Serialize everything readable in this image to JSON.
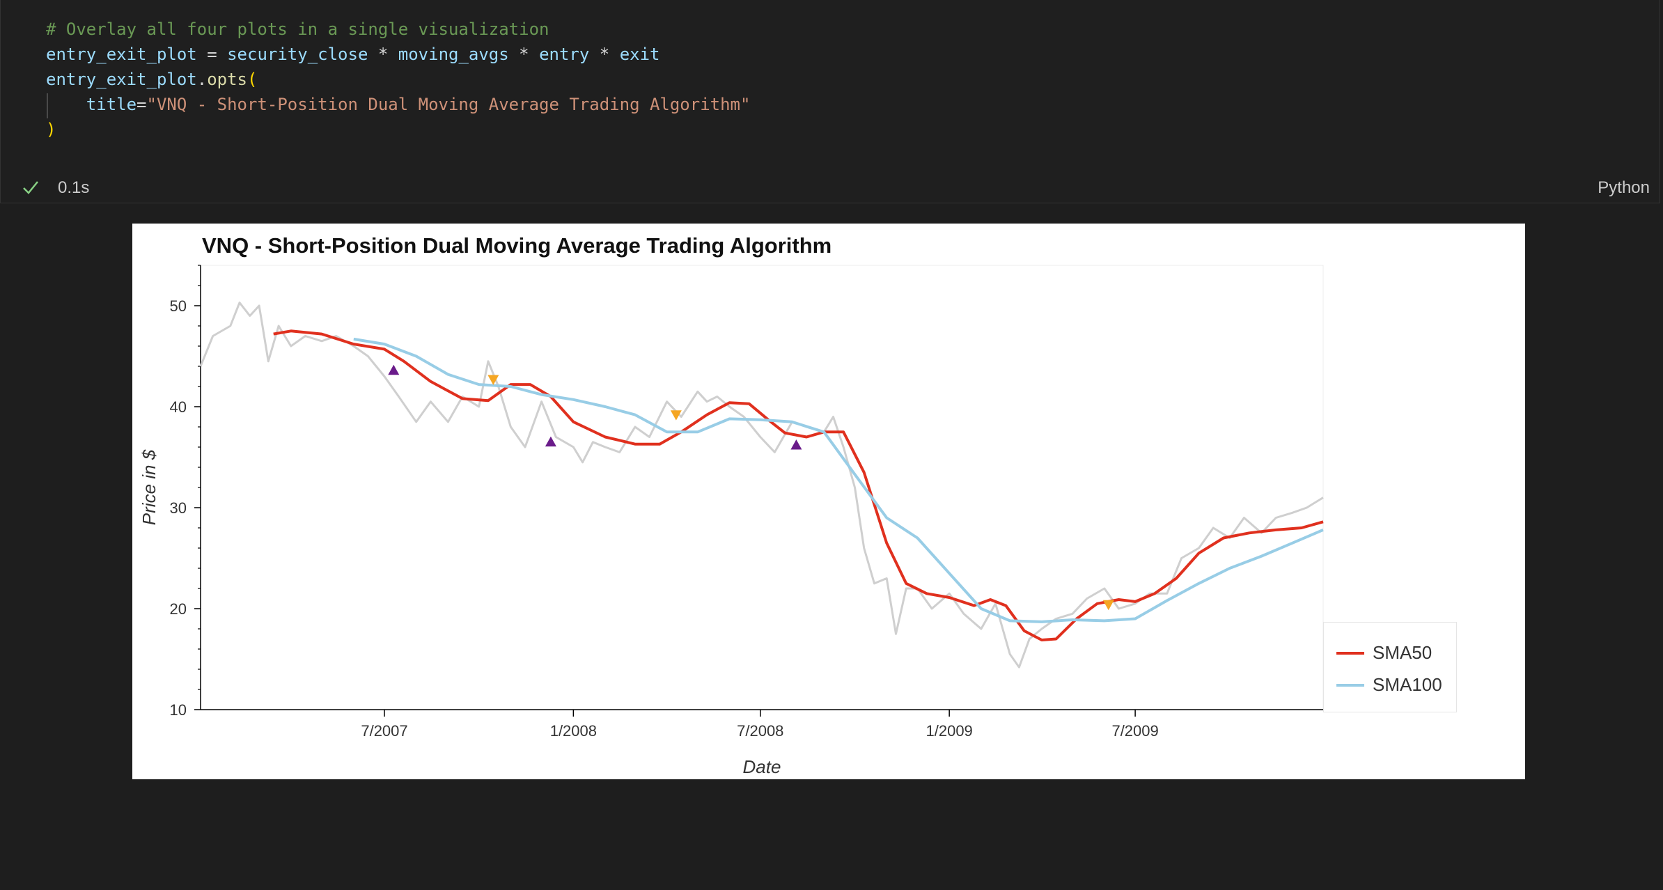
{
  "cell": {
    "code_lines": [
      {
        "tokens": [
          {
            "t": "# Overlay all four plots in a single visualization",
            "c": "c-comment"
          }
        ]
      },
      {
        "tokens": [
          {
            "t": "entry_exit_plot",
            "c": "c-var"
          },
          {
            "t": " = ",
            "c": "c-op"
          },
          {
            "t": "security_close",
            "c": "c-var"
          },
          {
            "t": " * ",
            "c": "c-op"
          },
          {
            "t": "moving_avgs",
            "c": "c-var"
          },
          {
            "t": " * ",
            "c": "c-op"
          },
          {
            "t": "entry",
            "c": "c-var"
          },
          {
            "t": " * ",
            "c": "c-op"
          },
          {
            "t": "exit",
            "c": "c-var"
          }
        ]
      },
      {
        "tokens": [
          {
            "t": "entry_exit_plot",
            "c": "c-var"
          },
          {
            "t": ".",
            "c": "c-op"
          },
          {
            "t": "opts",
            "c": "c-fn"
          },
          {
            "t": "(",
            "c": "c-paren"
          }
        ]
      },
      {
        "tokens": [
          {
            "t": "    title",
            "c": "c-var"
          },
          {
            "t": "=",
            "c": "c-op"
          },
          {
            "t": "\"VNQ - Short-Position Dual Moving Average Trading Algorithm\"",
            "c": "c-str"
          }
        ]
      },
      {
        "tokens": [
          {
            "t": ")",
            "c": "c-paren"
          }
        ]
      }
    ],
    "exec_time": "0.1s",
    "language": "Python",
    "status_icon": "check-icon"
  },
  "toolbar": {
    "icons": [
      "bokeh-logo-icon",
      "pan-icon",
      "box-zoom-icon",
      "wheel-zoom-icon",
      "save-icon",
      "reset-icon",
      "hover-icon",
      "hover-icon-2"
    ]
  },
  "chart_data": {
    "type": "line",
    "title": "VNQ - Short-Position Dual Moving Average Trading Algorithm",
    "xlabel": "Date",
    "ylabel": "Price in $",
    "x_ticks": [
      "7/2007",
      "1/2008",
      "7/2008",
      "1/2009",
      "7/2009"
    ],
    "y_ticks": [
      10,
      20,
      30,
      40,
      50
    ],
    "xlim": [
      "2007-01-03",
      "2009-12-31"
    ],
    "ylim": [
      10,
      54
    ],
    "grid": false,
    "legend_position": "right",
    "series": [
      {
        "name": "SMA50",
        "color": "#e0301e",
        "x": [
          "2007-03-15",
          "2007-04-01",
          "2007-05-01",
          "2007-06-01",
          "2007-07-01",
          "2007-07-20",
          "2007-08-15",
          "2007-09-15",
          "2007-10-10",
          "2007-11-01",
          "2007-11-20",
          "2007-12-10",
          "2008-01-01",
          "2008-02-01",
          "2008-03-01",
          "2008-03-25",
          "2008-04-15",
          "2008-05-10",
          "2008-06-01",
          "2008-06-20",
          "2008-07-10",
          "2008-07-25",
          "2008-08-15",
          "2008-09-01",
          "2008-09-20",
          "2008-10-10",
          "2008-11-01",
          "2008-11-20",
          "2008-12-10",
          "2009-01-01",
          "2009-01-25",
          "2009-02-10",
          "2009-02-25",
          "2009-03-15",
          "2009-04-01",
          "2009-04-15",
          "2009-05-05",
          "2009-05-25",
          "2009-06-15",
          "2009-07-01",
          "2009-07-20",
          "2009-08-10",
          "2009-09-01",
          "2009-09-25",
          "2009-10-20",
          "2009-11-15",
          "2009-12-10",
          "2009-12-31"
        ],
        "y": [
          47.2,
          47.5,
          47.2,
          46.2,
          45.7,
          44.5,
          42.5,
          40.8,
          40.6,
          42.2,
          42.2,
          41.0,
          38.5,
          37.0,
          36.3,
          36.3,
          37.5,
          39.2,
          40.4,
          40.3,
          38.6,
          37.4,
          37.0,
          37.5,
          37.5,
          33.5,
          26.5,
          22.5,
          21.5,
          21.1,
          20.3,
          20.9,
          20.3,
          17.8,
          16.9,
          17.0,
          19.0,
          20.5,
          20.9,
          20.7,
          21.5,
          23.0,
          25.5,
          27.0,
          27.5,
          27.8,
          28.0,
          28.6
        ]
      },
      {
        "name": "SMA100",
        "color": "#98cde6",
        "x": [
          "2007-06-01",
          "2007-07-01",
          "2007-08-01",
          "2007-09-01",
          "2007-10-01",
          "2007-11-01",
          "2007-12-01",
          "2008-01-01",
          "2008-02-01",
          "2008-03-01",
          "2008-04-01",
          "2008-05-01",
          "2008-06-01",
          "2008-07-01",
          "2008-08-01",
          "2008-09-01",
          "2008-10-01",
          "2008-11-01",
          "2008-12-01",
          "2009-01-01",
          "2009-02-01",
          "2009-03-01",
          "2009-04-01",
          "2009-05-01",
          "2009-06-01",
          "2009-07-01",
          "2009-08-01",
          "2009-09-01",
          "2009-10-01",
          "2009-11-01",
          "2009-12-01",
          "2009-12-31"
        ],
        "y": [
          46.7,
          46.2,
          45.0,
          43.2,
          42.2,
          42.0,
          41.2,
          40.7,
          40.0,
          39.2,
          37.5,
          37.5,
          38.8,
          38.7,
          38.5,
          37.5,
          33.3,
          29.0,
          27.0,
          23.5,
          20.0,
          18.8,
          18.7,
          18.9,
          18.8,
          19.0,
          20.8,
          22.5,
          24.0,
          25.2,
          26.5,
          27.8
        ]
      }
    ],
    "unlabeled_series": [
      {
        "color": "#cfcfcf",
        "x": [
          "2007-01-03",
          "2007-01-15",
          "2007-02-01",
          "2007-02-10",
          "2007-02-20",
          "2007-03-01",
          "2007-03-10",
          "2007-03-20",
          "2007-04-01",
          "2007-04-15",
          "2007-05-01",
          "2007-05-15",
          "2007-06-01",
          "2007-06-15",
          "2007-07-01",
          "2007-07-15",
          "2007-08-01",
          "2007-08-15",
          "2007-09-01",
          "2007-09-15",
          "2007-10-01",
          "2007-10-10",
          "2007-10-20",
          "2007-11-01",
          "2007-11-15",
          "2007-12-01",
          "2007-12-15",
          "2008-01-01",
          "2008-01-10",
          "2008-01-20",
          "2008-02-01",
          "2008-02-15",
          "2008-03-01",
          "2008-03-15",
          "2008-04-01",
          "2008-04-15",
          "2008-05-01",
          "2008-05-10",
          "2008-05-20",
          "2008-06-01",
          "2008-06-15",
          "2008-07-01",
          "2008-07-15",
          "2008-08-01",
          "2008-08-15",
          "2008-09-01",
          "2008-09-10",
          "2008-09-20",
          "2008-10-01",
          "2008-10-10",
          "2008-10-20",
          "2008-11-01",
          "2008-11-10",
          "2008-11-20",
          "2008-12-01",
          "2008-12-15",
          "2009-01-01",
          "2009-01-15",
          "2009-02-01",
          "2009-02-15",
          "2009-03-01",
          "2009-03-10",
          "2009-03-20",
          "2009-04-01",
          "2009-04-15",
          "2009-05-01",
          "2009-05-15",
          "2009-06-01",
          "2009-06-15",
          "2009-07-01",
          "2009-07-15",
          "2009-08-01",
          "2009-08-15",
          "2009-09-01",
          "2009-09-15",
          "2009-10-01",
          "2009-10-15",
          "2009-11-01",
          "2009-11-15",
          "2009-12-01",
          "2009-12-15",
          "2009-12-31"
        ],
        "y": [
          44,
          47,
          48,
          50.3,
          49,
          50,
          44.5,
          48,
          46,
          47,
          46.5,
          47,
          46,
          45,
          43,
          41,
          38.5,
          40.5,
          38.5,
          41,
          40,
          44.5,
          42,
          38,
          36,
          40.5,
          37,
          36,
          34.5,
          36.5,
          36,
          35.5,
          38,
          37,
          40.5,
          39,
          41.5,
          40.5,
          41,
          40,
          39,
          37,
          35.5,
          38.5,
          38,
          37.5,
          39,
          36,
          32,
          26,
          22.5,
          23,
          17.5,
          22,
          22,
          20,
          21.5,
          19.5,
          18,
          20.5,
          15.5,
          14.2,
          17,
          18,
          19,
          19.5,
          21,
          22,
          20,
          20.5,
          21.5,
          21.5,
          25,
          26,
          28,
          27,
          29,
          27.5,
          29,
          29.5,
          30,
          31
        ]
      }
    ],
    "markers": [
      {
        "kind": "entry",
        "shape": "triangle-up",
        "color": "#6a1b8a",
        "x": "2007-07-10",
        "y": 43.6
      },
      {
        "kind": "exit",
        "shape": "triangle-down",
        "color": "#f5a623",
        "x": "2007-10-15",
        "y": 42.7
      },
      {
        "kind": "entry",
        "shape": "triangle-up",
        "color": "#6a1b8a",
        "x": "2007-12-10",
        "y": 36.5
      },
      {
        "kind": "exit",
        "shape": "triangle-down",
        "color": "#f5a623",
        "x": "2008-04-10",
        "y": 39.2
      },
      {
        "kind": "entry",
        "shape": "triangle-up",
        "color": "#6a1b8a",
        "x": "2008-08-05",
        "y": 36.2
      },
      {
        "kind": "exit",
        "shape": "triangle-down",
        "color": "#f5a623",
        "x": "2009-06-05",
        "y": 20.4
      }
    ]
  }
}
